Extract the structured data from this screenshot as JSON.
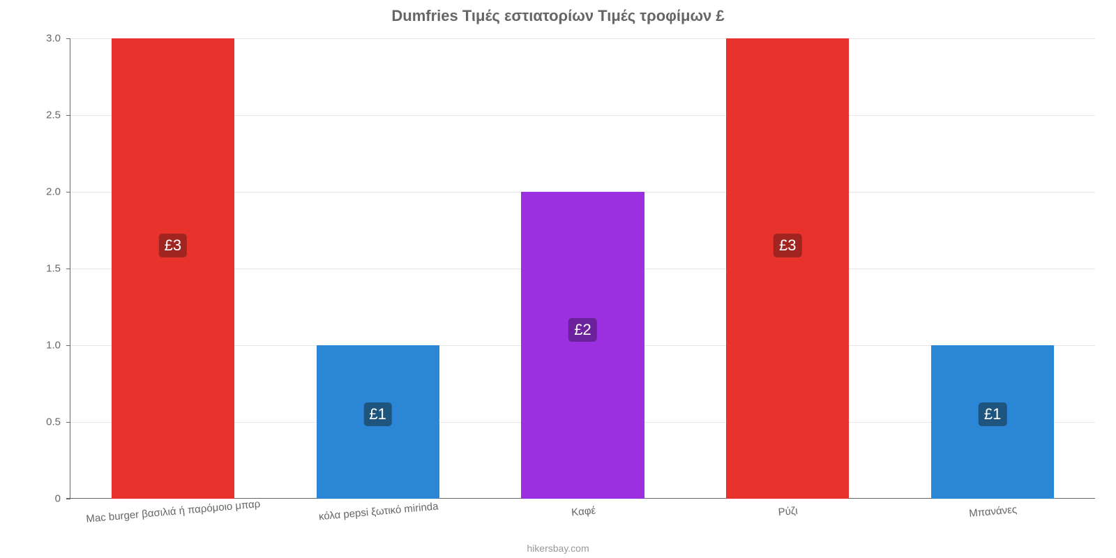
{
  "chart": {
    "type": "bar",
    "title": "Dumfries Τιμές εστιατορίων Τιμές τροφίμων £",
    "title_fontsize": 22,
    "title_color": "#666666",
    "background_color": "#ffffff",
    "grid_color": "#e6e6e6",
    "axis_color": "#666666",
    "tick_label_color": "#666666",
    "tick_label_fontsize": 15,
    "x_label_rotation_deg": -5,
    "ylim": [
      0,
      3.0
    ],
    "yticks": [
      0,
      0.5,
      1.0,
      1.5,
      2.0,
      2.5,
      3.0
    ],
    "ytick_labels": [
      "0",
      "0.5",
      "1.0",
      "1.5",
      "2.0",
      "2.5",
      "3.0"
    ],
    "bar_width_ratio": 0.6,
    "categories": [
      "Mac burger βασιλιά ή παρόμοιο μπαρ",
      "κόλα pepsi ξωτικό mirinda",
      "Καφέ",
      "Ρύζι",
      "Μπανάνες"
    ],
    "values": [
      3,
      1,
      2,
      3,
      1
    ],
    "value_labels": [
      "£3",
      "£1",
      "£2",
      "£3",
      "£1"
    ],
    "bar_colors": [
      "#e8322c",
      "#2b87d6",
      "#9b30e0",
      "#e8322c",
      "#2b87d6"
    ],
    "value_label_text_color": "#ffffff",
    "value_label_fontsize": 22,
    "value_badge_bg": {
      "£3": "#a02420",
      "£1": "#1e557e",
      "£2": "#6a219b"
    },
    "credit": "hikersbay.com",
    "credit_color": "#999999",
    "credit_fontsize": 14
  }
}
